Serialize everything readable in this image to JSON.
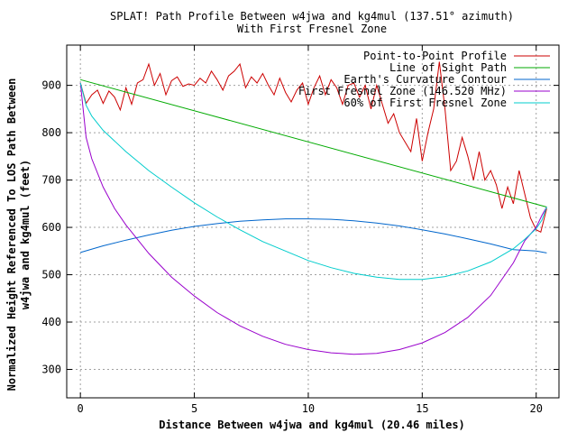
{
  "chart_data": {
    "type": "line",
    "title": "SPLAT! Path Profile Between w4jwa and kg4mul (137.51° azimuth)",
    "subtitle": "With First Fresnel Zone",
    "xlabel": "Distance Between w4jwa and kg4mul (20.46 miles)",
    "ylabel_line1": "Normalized Height Referenced To LOS Path Between",
    "ylabel_line2": "w4jwa and kg4mul (feet)",
    "xlim": [
      -0.6,
      21.0
    ],
    "ylim": [
      240,
      985
    ],
    "x_ticks": [
      0,
      5,
      10,
      15,
      20
    ],
    "y_ticks": [
      300,
      400,
      500,
      600,
      700,
      800,
      900
    ],
    "grid": true,
    "legend_position": "top-right",
    "series": [
      {
        "name": "Point-to-Point Profile",
        "color": "#cc0000",
        "x": [
          0,
          0.25,
          0.5,
          0.75,
          1.0,
          1.25,
          1.5,
          1.75,
          2.0,
          2.25,
          2.5,
          2.75,
          3.0,
          3.25,
          3.5,
          3.75,
          4.0,
          4.25,
          4.5,
          4.75,
          5.0,
          5.25,
          5.5,
          5.75,
          6.0,
          6.25,
          6.5,
          6.75,
          7.0,
          7.25,
          7.5,
          7.75,
          8.0,
          8.25,
          8.5,
          8.75,
          9.0,
          9.25,
          9.5,
          9.75,
          10.0,
          10.25,
          10.5,
          10.75,
          11.0,
          11.25,
          11.5,
          11.75,
          12.0,
          12.25,
          12.5,
          12.75,
          13.0,
          13.25,
          13.5,
          13.75,
          14.0,
          14.25,
          14.5,
          14.75,
          15.0,
          15.25,
          15.5,
          15.75,
          16.0,
          16.25,
          16.5,
          16.75,
          17.0,
          17.25,
          17.5,
          17.75,
          18.0,
          18.25,
          18.5,
          18.75,
          19.0,
          19.25,
          19.5,
          19.75,
          20.0,
          20.2,
          20.46
        ],
        "values": [
          905,
          862,
          880,
          890,
          862,
          888,
          875,
          848,
          895,
          860,
          905,
          912,
          945,
          900,
          925,
          880,
          910,
          918,
          898,
          903,
          900,
          915,
          905,
          930,
          912,
          890,
          920,
          930,
          945,
          895,
          918,
          905,
          925,
          900,
          880,
          915,
          885,
          865,
          890,
          905,
          860,
          895,
          920,
          880,
          912,
          895,
          860,
          900,
          905,
          875,
          900,
          850,
          900,
          860,
          820,
          840,
          800,
          780,
          760,
          830,
          740,
          800,
          850,
          950,
          850,
          720,
          740,
          790,
          750,
          700,
          760,
          700,
          720,
          690,
          640,
          685,
          650,
          720,
          670,
          620,
          595,
          590,
          640
        ]
      },
      {
        "name": "Line of Sight Path",
        "color": "#00aa00",
        "x": [
          0,
          20.46
        ],
        "values": [
          912,
          643
        ]
      },
      {
        "name": "Earth's Curvature Contour",
        "color": "#0066cc",
        "x": [
          0,
          1,
          2,
          3,
          4,
          5,
          6,
          7,
          8,
          9,
          10,
          11,
          12,
          13,
          14,
          15,
          16,
          17,
          18,
          19,
          20,
          20.46
        ],
        "values": [
          547,
          561,
          573,
          584,
          594,
          602,
          608,
          613,
          616,
          618,
          618,
          617,
          614,
          609,
          603,
          595,
          586,
          576,
          565,
          553,
          550,
          546
        ]
      },
      {
        "name": "First Fresnel Zone (146.520 MHz)",
        "color": "#9900cc",
        "x": [
          0,
          0.25,
          0.5,
          1,
          1.5,
          2,
          3,
          4,
          5,
          6,
          7,
          8,
          9,
          10,
          11,
          12,
          13,
          14,
          15,
          16,
          17,
          18,
          19,
          19.5,
          20,
          20.25,
          20.46
        ],
        "values": [
          905,
          790,
          745,
          685,
          640,
          605,
          545,
          495,
          455,
          420,
          392,
          370,
          353,
          342,
          335,
          332,
          334,
          342,
          356,
          378,
          410,
          456,
          525,
          572,
          600,
          625,
          643
        ]
      },
      {
        "name": "60% of First Fresnel Zone",
        "color": "#00cccc",
        "x": [
          0,
          0.25,
          0.5,
          1,
          2,
          3,
          4,
          5,
          6,
          7,
          8,
          9,
          10,
          11,
          12,
          13,
          14,
          15,
          16,
          17,
          18,
          19,
          19.5,
          20,
          20.25,
          20.46
        ],
        "values": [
          905,
          858,
          835,
          805,
          760,
          720,
          685,
          652,
          622,
          595,
          570,
          550,
          530,
          515,
          503,
          495,
          490,
          490,
          496,
          508,
          527,
          555,
          575,
          597,
          615,
          643
        ]
      }
    ]
  }
}
